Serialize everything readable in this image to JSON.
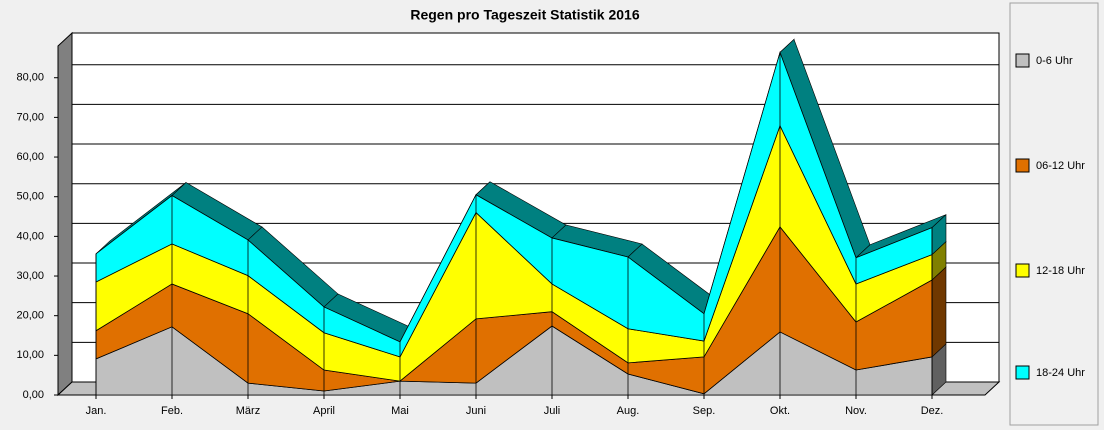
{
  "chart_data": {
    "type": "stacked-area-3d",
    "title": "Regen pro Tageszeit Statistik 2016",
    "categories": [
      "Jan.",
      "Feb.",
      "März",
      "April",
      "Mai",
      "Juni",
      "Juli",
      "Aug.",
      "Sep.",
      "Okt.",
      "Nov.",
      "Dez."
    ],
    "series": [
      {
        "name": "0-6 Uhr",
        "color": "#c0c0c0",
        "values": [
          9.1,
          17.2,
          3.0,
          1.0,
          3.5,
          3.0,
          17.4,
          5.3,
          0.3,
          15.9,
          6.3,
          9.6
        ]
      },
      {
        "name": "06-12 Uhr",
        "color": "#e07000",
        "values": [
          7.1,
          10.8,
          17.5,
          5.3,
          0.0,
          16.2,
          3.6,
          2.8,
          9.3,
          26.5,
          12.1,
          19.4
        ]
      },
      {
        "name": "12-18 Uhr",
        "color": "#ffff00",
        "values": [
          12.3,
          10.1,
          9.6,
          9.4,
          6.1,
          26.8,
          7.0,
          8.6,
          4.0,
          25.5,
          9.6,
          6.4
        ]
      },
      {
        "name": "18-24 Uhr",
        "color": "#00ffff",
        "values": [
          7.1,
          12.2,
          9.0,
          6.5,
          3.8,
          4.5,
          11.6,
          18.1,
          6.9,
          18.5,
          6.6,
          6.8
        ]
      }
    ],
    "ylim": [
      0,
      88
    ],
    "yticks": [
      {
        "value": 0,
        "label": "0,00"
      },
      {
        "value": 10,
        "label": "10,00"
      },
      {
        "value": 20,
        "label": "20,00"
      },
      {
        "value": 30,
        "label": "30,00"
      },
      {
        "value": 40,
        "label": "40,00"
      },
      {
        "value": 50,
        "label": "50,00"
      },
      {
        "value": 60,
        "label": "60,00"
      },
      {
        "value": 70,
        "label": "70,00"
      },
      {
        "value": 80,
        "label": "80,00"
      }
    ],
    "grid": true
  }
}
